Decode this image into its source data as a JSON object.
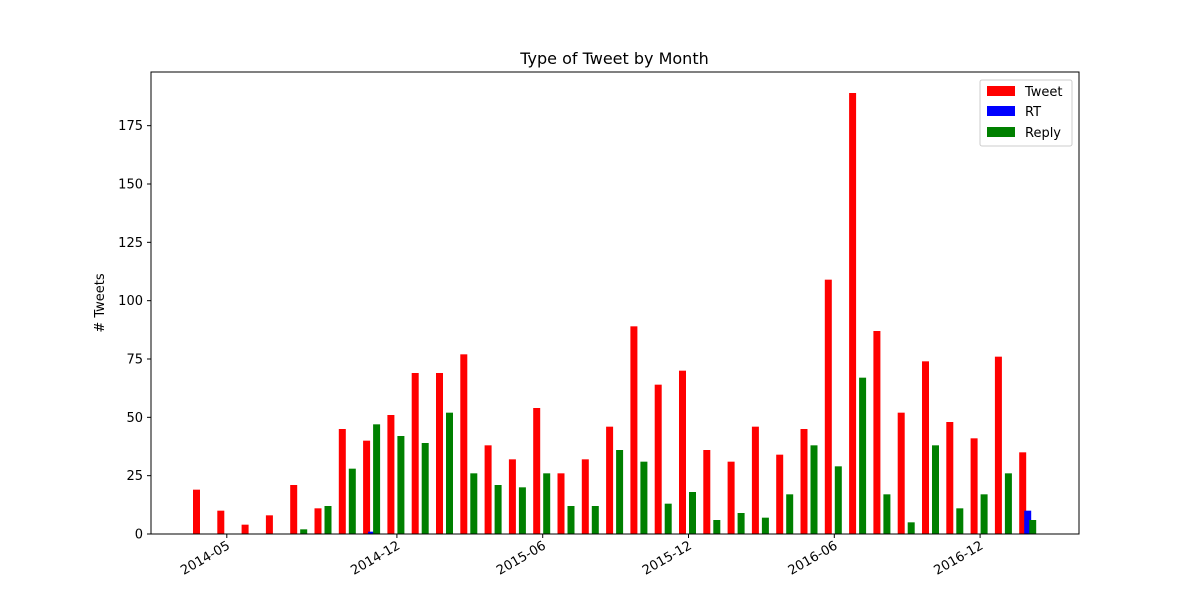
{
  "chart_data": {
    "type": "bar",
    "title": "Type of Tweet by Month",
    "xlabel": "",
    "ylabel": "# Tweets",
    "ylim": [
      0,
      198
    ],
    "yticks": [
      0,
      25,
      50,
      75,
      100,
      125,
      150,
      175
    ],
    "xticks": [
      "2014-05",
      "2014-12",
      "2015-06",
      "2015-12",
      "2016-06",
      "2016-12"
    ],
    "grid": false,
    "legend_position": "top-right",
    "categories": [
      "2014-04",
      "2014-05",
      "2014-06",
      "2014-07",
      "2014-08",
      "2014-09",
      "2014-10",
      "2014-11",
      "2014-12",
      "2015-01",
      "2015-02",
      "2015-03",
      "2015-04",
      "2015-05",
      "2015-06",
      "2015-07",
      "2015-08",
      "2015-09",
      "2015-10",
      "2015-11",
      "2015-12",
      "2016-01",
      "2016-02",
      "2016-03",
      "2016-04",
      "2016-05",
      "2016-06",
      "2016-07",
      "2016-08",
      "2016-09",
      "2016-10",
      "2016-11",
      "2016-12",
      "2017-01",
      "2017-02",
      "2017-03"
    ],
    "series": [
      {
        "name": "Tweet",
        "color": "#ff0000",
        "values": [
          19,
          10,
          4,
          8,
          21,
          11,
          45,
          40,
          51,
          69,
          69,
          77,
          38,
          32,
          54,
          26,
          32,
          46,
          89,
          64,
          70,
          36,
          31,
          46,
          34,
          45,
          109,
          189,
          87,
          52,
          74,
          48,
          41,
          76,
          35,
          0
        ]
      },
      {
        "name": "RT",
        "color": "#0000ff",
        "values": [
          0,
          0,
          0,
          0,
          0,
          0,
          0,
          1,
          0,
          0,
          0,
          0,
          0,
          0,
          0,
          0,
          0,
          0,
          0,
          0,
          0,
          0,
          0,
          0,
          0,
          0,
          0,
          0,
          0,
          0,
          0,
          0,
          0,
          0,
          10,
          0
        ]
      },
      {
        "name": "Reply",
        "color": "#008000",
        "values": [
          0,
          0,
          0,
          0,
          2,
          12,
          28,
          47,
          42,
          39,
          52,
          26,
          21,
          20,
          26,
          12,
          12,
          36,
          31,
          13,
          18,
          6,
          9,
          7,
          17,
          38,
          29,
          67,
          17,
          5,
          38,
          11,
          17,
          26,
          6,
          0
        ]
      }
    ]
  }
}
